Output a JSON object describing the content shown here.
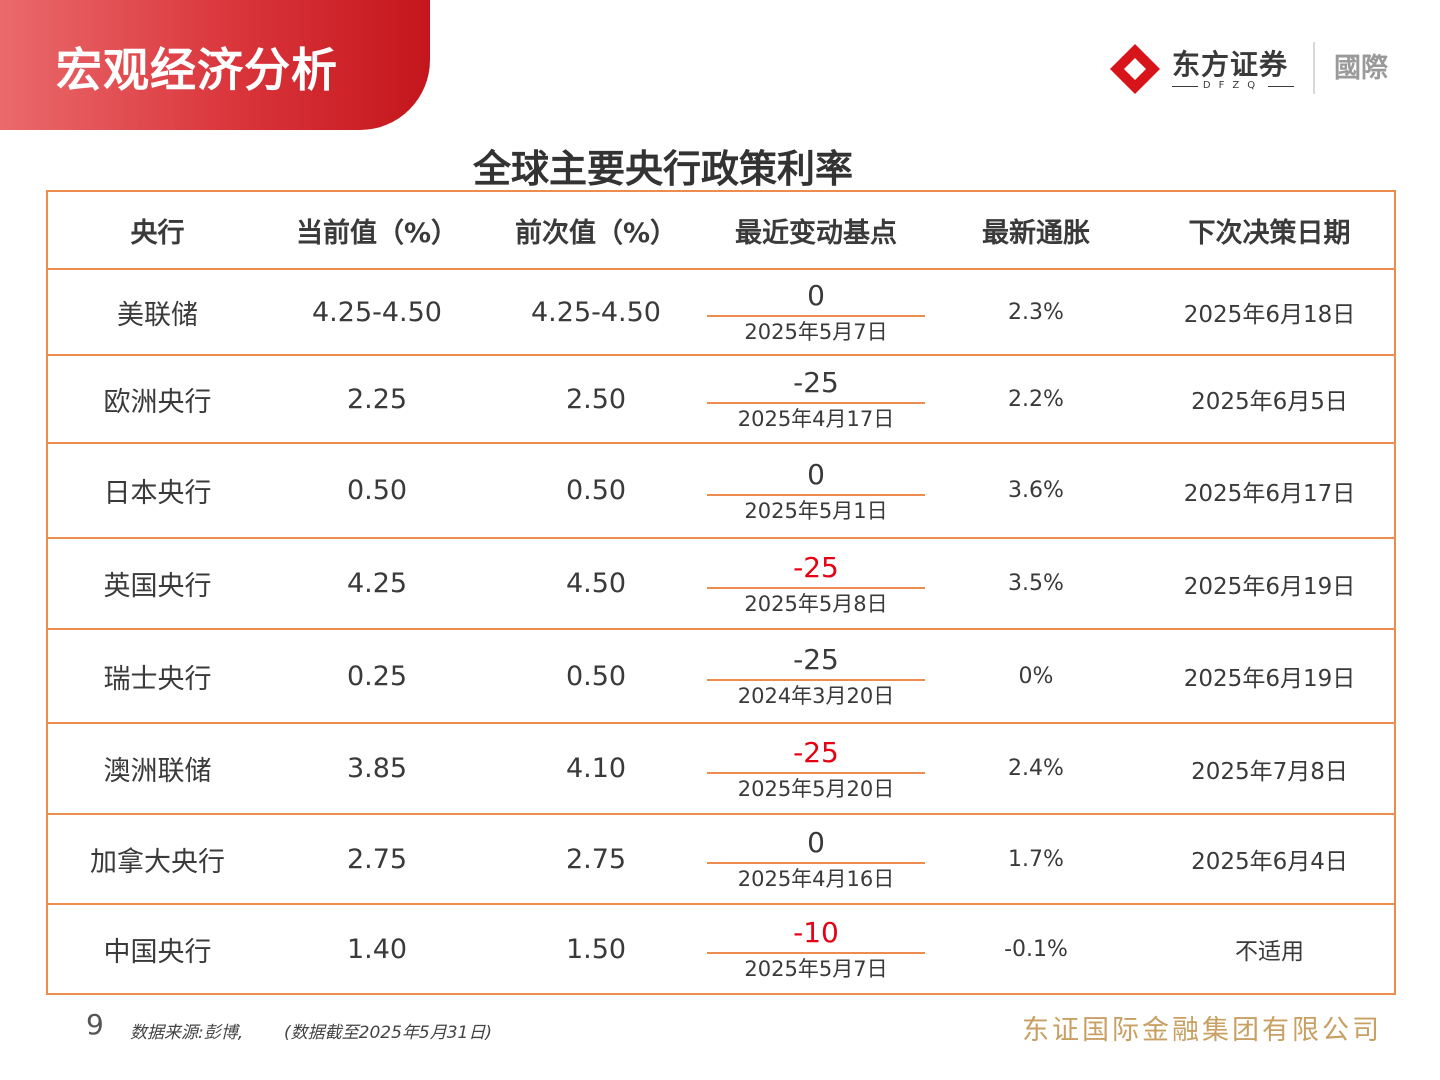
{
  "header": {
    "banner_title": "宏观经济分析",
    "logo_name": "东方证券",
    "logo_sub": "DFZQ",
    "logo_intl": "國際"
  },
  "table": {
    "title": "全球主要央行政策利率",
    "columns": [
      "央行",
      "当前值（%）",
      "前次值（%）",
      "最近变动基点",
      "最新通胀",
      "下次决策日期"
    ],
    "rows": [
      {
        "bank": "美联储",
        "current": "4.25-4.50",
        "previous": "4.25-4.50",
        "change_bp": "0",
        "change_date": "2025年5月7日",
        "inflation": "2.3%",
        "next_date": "2025年6月18日"
      },
      {
        "bank": "欧洲央行",
        "current": "2.25",
        "previous": "2.50",
        "change_bp": "-25",
        "change_date": "2025年4月17日",
        "inflation": "2.2%",
        "next_date": "2025年6月5日"
      },
      {
        "bank": "日本央行",
        "current": "0.50",
        "previous": "0.50",
        "change_bp": "0",
        "change_date": "2025年5月1日",
        "inflation": "3.6%",
        "next_date": "2025年6月17日"
      },
      {
        "bank": "英国央行",
        "current": "4.25",
        "previous": "4.50",
        "change_bp": "-25",
        "change_date": "2025年5月8日",
        "inflation": "3.5%",
        "next_date": "2025年6月19日"
      },
      {
        "bank": "瑞士央行",
        "current": "0.25",
        "previous": "0.50",
        "change_bp": "-25",
        "change_date": "2024年3月20日",
        "inflation": "0%",
        "next_date": "2025年6月19日"
      },
      {
        "bank": "澳洲联储",
        "current": "3.85",
        "previous": "4.10",
        "change_bp": "-25",
        "change_date": "2025年5月20日",
        "inflation": "2.4%",
        "next_date": "2025年7月8日"
      },
      {
        "bank": "加拿大央行",
        "current": "2.75",
        "previous": "2.75",
        "change_bp": "0",
        "change_date": "2025年4月16日",
        "inflation": "1.7%",
        "next_date": "2025年6月4日"
      },
      {
        "bank": "中国央行",
        "current": "1.40",
        "previous": "1.50",
        "change_bp": "-10",
        "change_date": "2025年5月7日",
        "inflation": "-0.1%",
        "next_date": "不适用"
      }
    ]
  },
  "footer": {
    "page_number": "9",
    "source": "数据来源:彭博,",
    "as_of": "(数据截至2025年5月31日)",
    "company": "东证国际金融集团有限公司"
  },
  "colors": {
    "brand_red": "#c4161c",
    "table_border": "#ed8c4f",
    "highlight_red": "#e60012",
    "company_gold": "#c9a063"
  }
}
